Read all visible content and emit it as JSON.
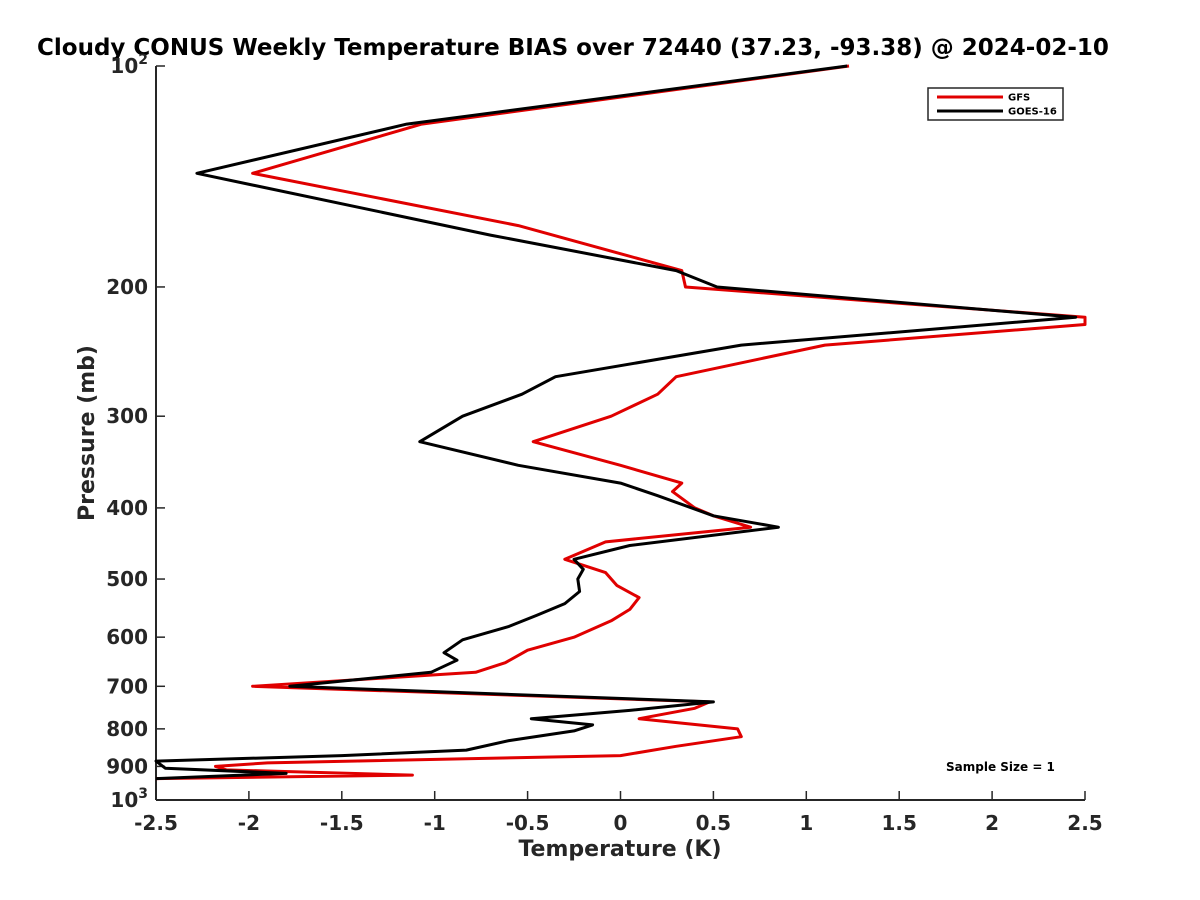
{
  "chart_data": {
    "type": "line",
    "title": "Cloudy CONUS Weekly Temperature BIAS over 72440 (37.23, -93.38) @ 2024-02-10",
    "xlabel": "Temperature (K)",
    "ylabel": "Pressure (mb)",
    "xlim": [
      -2.5,
      2.5
    ],
    "ylim": [
      100,
      1000
    ],
    "yscale": "log",
    "y_reversed": true,
    "xticks": [
      -2.5,
      -2,
      -1.5,
      -1,
      -0.5,
      0,
      0.5,
      1,
      1.5,
      2,
      2.5
    ],
    "xtick_labels": [
      "-2.5",
      "-2",
      "-1.5",
      "-1",
      "-0.5",
      "0",
      "0.5",
      "1",
      "1.5",
      "2",
      "2.5"
    ],
    "yticks": [
      100,
      200,
      300,
      400,
      500,
      600,
      700,
      800,
      900,
      1000
    ],
    "ytick_labels": [
      {
        "base": "10",
        "exp": "2"
      },
      {
        "base": "200"
      },
      {
        "base": "300"
      },
      {
        "base": "400"
      },
      {
        "base": "500"
      },
      {
        "base": "600"
      },
      {
        "base": "700"
      },
      {
        "base": "800"
      },
      {
        "base": "900"
      },
      {
        "base": "10",
        "exp": "3"
      }
    ],
    "grid": false,
    "legend_position": "top-right",
    "annotation": "Sample Size = 1",
    "series": [
      {
        "name": "GFS",
        "color": "#e00000",
        "points": [
          [
            1.23,
            100
          ],
          [
            -1.07,
            120
          ],
          [
            -1.98,
            140
          ],
          [
            -0.55,
            165
          ],
          [
            0.33,
            190
          ],
          [
            0.35,
            200
          ],
          [
            2.5,
            220
          ],
          [
            2.5,
            225
          ],
          [
            1.1,
            240
          ],
          [
            0.3,
            265
          ],
          [
            0.2,
            280
          ],
          [
            -0.05,
            300
          ],
          [
            -0.47,
            325
          ],
          [
            0,
            350
          ],
          [
            0.33,
            370
          ],
          [
            0.28,
            380
          ],
          [
            0.4,
            400
          ],
          [
            0.5,
            410
          ],
          [
            0.7,
            425
          ],
          [
            -0.08,
            445
          ],
          [
            -0.3,
            470
          ],
          [
            -0.08,
            490
          ],
          [
            -0.02,
            510
          ],
          [
            0.1,
            530
          ],
          [
            0.05,
            550
          ],
          [
            -0.05,
            570
          ],
          [
            -0.25,
            600
          ],
          [
            -0.5,
            625
          ],
          [
            -0.62,
            650
          ],
          [
            -0.78,
            670
          ],
          [
            -1.98,
            700
          ],
          [
            0.48,
            735
          ],
          [
            0.4,
            750
          ],
          [
            0.1,
            775
          ],
          [
            0.63,
            800
          ],
          [
            0.65,
            820
          ],
          [
            0.3,
            845
          ],
          [
            0,
            870
          ],
          [
            -1.9,
            890
          ],
          [
            -2.18,
            900
          ],
          [
            -2.12,
            910
          ],
          [
            -1.12,
            925
          ],
          [
            -2.5,
            935
          ]
        ]
      },
      {
        "name": "GOES-16",
        "color": "#000000",
        "points": [
          [
            1.22,
            100
          ],
          [
            -1.15,
            120
          ],
          [
            -2.28,
            140
          ],
          [
            -0.7,
            170
          ],
          [
            0.3,
            190
          ],
          [
            0.52,
            200
          ],
          [
            2.45,
            220
          ],
          [
            0.65,
            240
          ],
          [
            -0.35,
            265
          ],
          [
            -0.53,
            280
          ],
          [
            -0.85,
            300
          ],
          [
            -1.08,
            325
          ],
          [
            -0.55,
            350
          ],
          [
            0,
            370
          ],
          [
            0.2,
            385
          ],
          [
            0.5,
            410
          ],
          [
            0.85,
            425
          ],
          [
            0.05,
            450
          ],
          [
            -0.25,
            470
          ],
          [
            -0.2,
            485
          ],
          [
            -0.23,
            500
          ],
          [
            -0.22,
            520
          ],
          [
            -0.3,
            540
          ],
          [
            -0.45,
            560
          ],
          [
            -0.6,
            580
          ],
          [
            -0.85,
            605
          ],
          [
            -0.95,
            630
          ],
          [
            -0.88,
            645
          ],
          [
            -1.02,
            670
          ],
          [
            -1.78,
            700
          ],
          [
            0.5,
            735
          ],
          [
            0.05,
            755
          ],
          [
            -0.48,
            775
          ],
          [
            -0.15,
            790
          ],
          [
            -0.25,
            805
          ],
          [
            -0.6,
            830
          ],
          [
            -0.83,
            855
          ],
          [
            -1.5,
            870
          ],
          [
            -2.5,
            885
          ],
          [
            -2.45,
            905
          ],
          [
            -1.8,
            920
          ],
          [
            -2.5,
            935
          ]
        ]
      }
    ]
  }
}
